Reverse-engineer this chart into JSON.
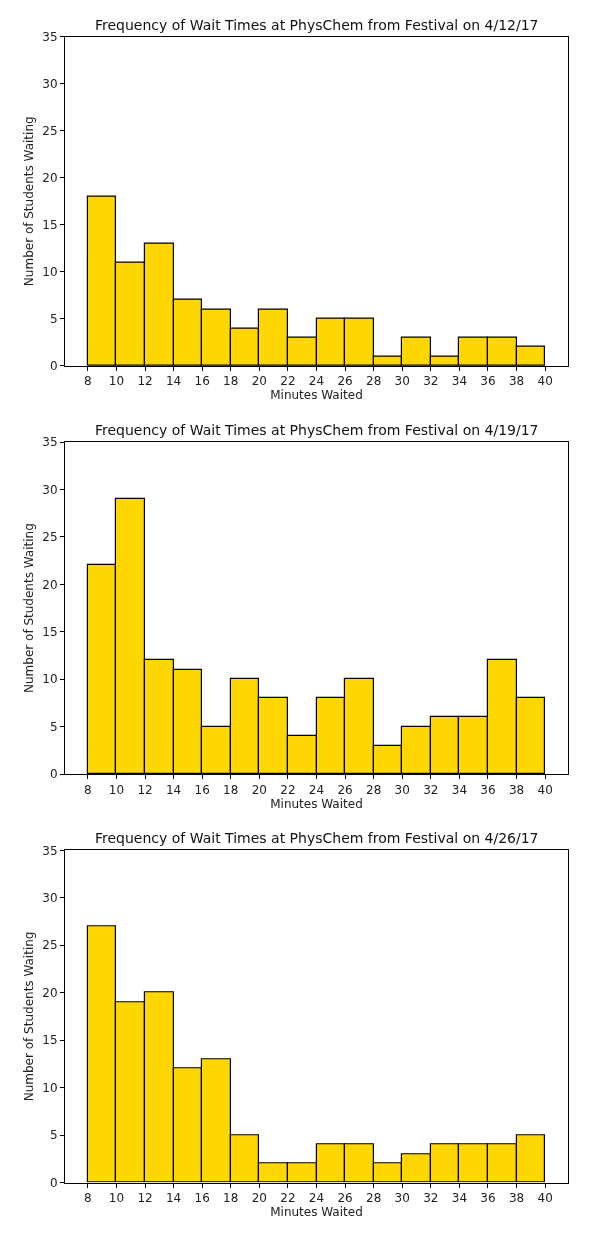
{
  "chart_data": [
    {
      "type": "histogram",
      "title": "Frequency of Wait Times at PhysChem from Festival on 4/12/17",
      "xlabel": "Minutes Waited",
      "ylabel": "Number of Students Waiting",
      "bins": [
        8,
        10,
        12,
        14,
        16,
        18,
        20,
        22,
        24,
        26,
        28,
        30,
        32,
        34,
        36,
        38,
        40
      ],
      "values": [
        18,
        11,
        13,
        7,
        6,
        4,
        6,
        3,
        5,
        5,
        1,
        3,
        1,
        3,
        3,
        2
      ],
      "color": "#ffd700",
      "xlim": [
        6.4,
        41.6
      ],
      "xticks": [
        8,
        10,
        12,
        14,
        16,
        18,
        20,
        22,
        24,
        26,
        28,
        30,
        32,
        34,
        36,
        38,
        40
      ],
      "ylim": [
        0,
        35
      ],
      "yticks": [
        0,
        5,
        10,
        15,
        20,
        25,
        30,
        35
      ]
    },
    {
      "type": "histogram",
      "title": "Frequency of Wait Times at PhysChem from Festival on 4/19/17",
      "xlabel": "Minutes Waited",
      "ylabel": "Number of Students Waiting",
      "bins": [
        8,
        10,
        12,
        14,
        16,
        18,
        20,
        22,
        24,
        26,
        28,
        30,
        32,
        34,
        36,
        38,
        40
      ],
      "values": [
        22,
        29,
        12,
        11,
        5,
        10,
        8,
        4,
        8,
        10,
        3,
        5,
        6,
        6,
        12,
        8
      ],
      "color": "#ffd700",
      "xlim": [
        6.4,
        41.6
      ],
      "xticks": [
        8,
        10,
        12,
        14,
        16,
        18,
        20,
        22,
        24,
        26,
        28,
        30,
        32,
        34,
        36,
        38,
        40
      ],
      "ylim": [
        0,
        35
      ],
      "yticks": [
        0,
        5,
        10,
        15,
        20,
        25,
        30,
        35
      ]
    },
    {
      "type": "histogram",
      "title": "Frequency of Wait Times at PhysChem from Festival on 4/26/17",
      "xlabel": "Minutes Waited",
      "ylabel": "Number of Students Waiting",
      "bins": [
        8,
        10,
        12,
        14,
        16,
        18,
        20,
        22,
        24,
        26,
        28,
        30,
        32,
        34,
        36,
        38,
        40
      ],
      "values": [
        27,
        19,
        20,
        12,
        13,
        5,
        2,
        2,
        4,
        4,
        2,
        3,
        4,
        4,
        4,
        5
      ],
      "color": "#ffd700",
      "xlim": [
        6.4,
        41.6
      ],
      "xticks": [
        8,
        10,
        12,
        14,
        16,
        18,
        20,
        22,
        24,
        26,
        28,
        30,
        32,
        34,
        36,
        38,
        40
      ],
      "ylim": [
        0,
        35
      ],
      "yticks": [
        0,
        5,
        10,
        15,
        20,
        25,
        30,
        35
      ]
    }
  ]
}
